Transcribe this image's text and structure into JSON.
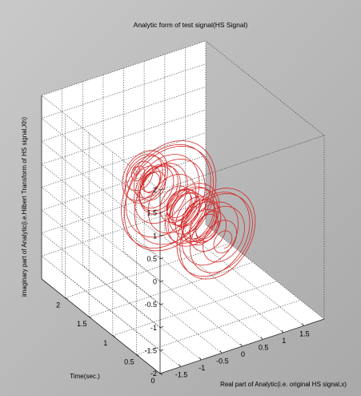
{
  "chart_data": {
    "type": "line",
    "projection": "3d",
    "title": "Analytic form of test signal(HS Signal)",
    "xlabel": "Real part of Analytic(i.e. original HS signal,x)",
    "ylabel": "Time(sec.)",
    "zlabel": "imaginary part of Analytic(i.e.Hilbert Transform of HS signal,Xh)",
    "xlim": [
      -2,
      2
    ],
    "ylim": [
      0,
      2.5
    ],
    "zlim": [
      -2,
      2
    ],
    "x_ticks": [
      "-1.5",
      "-1",
      "-0.5",
      "0",
      "0.5",
      "1",
      "1.5"
    ],
    "y_ticks": [
      "0",
      "0.5",
      "1",
      "1.5",
      "2"
    ],
    "z_ticks": [
      "-2",
      "-1.5",
      "-1",
      "-0.5",
      "0",
      "0.5",
      "1",
      "1.5",
      "2"
    ],
    "grid": true,
    "series_color": "#d42a2a",
    "series": [
      {
        "description": "helical analytic signal trace, bursts centred around t = 1.25 s",
        "bursts": [
          {
            "t_center": 0.55,
            "amplitude": 0.9
          },
          {
            "t_center": 0.85,
            "amplitude": 0.4
          },
          {
            "t_center": 1.05,
            "amplitude": 0.6
          },
          {
            "t_center": 1.25,
            "amplitude": 0.3
          },
          {
            "t_center": 1.55,
            "amplitude": 1.1
          },
          {
            "t_center": 1.8,
            "amplitude": 0.35
          },
          {
            "t_center": 2.05,
            "amplitude": 0.5
          }
        ]
      }
    ]
  }
}
